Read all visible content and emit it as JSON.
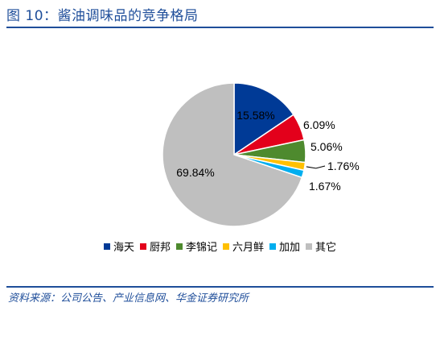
{
  "figure": {
    "title": "图 10：酱油调味品的竞争格局",
    "source": "资料来源：公司公告、产业信息网、华金证券研究所"
  },
  "chart_data": {
    "type": "pie",
    "title": "",
    "legend_position": "bottom",
    "slices": [
      {
        "name": "海天",
        "value": 15.58,
        "label": "15.58%",
        "color": "#003a96"
      },
      {
        "name": "厨邦",
        "value": 6.09,
        "label": "6.09%",
        "color": "#e3001b"
      },
      {
        "name": "李锦记",
        "value": 5.06,
        "label": "5.06%",
        "color": "#4e8a2e"
      },
      {
        "name": "六月鲜",
        "value": 1.76,
        "label": "1.76%",
        "color": "#ffc000"
      },
      {
        "name": "加加",
        "value": 1.67,
        "label": "1.67%",
        "color": "#00aeef"
      },
      {
        "name": "其它",
        "value": 69.84,
        "label": "69.84%",
        "color": "#bfbfbf"
      }
    ]
  }
}
